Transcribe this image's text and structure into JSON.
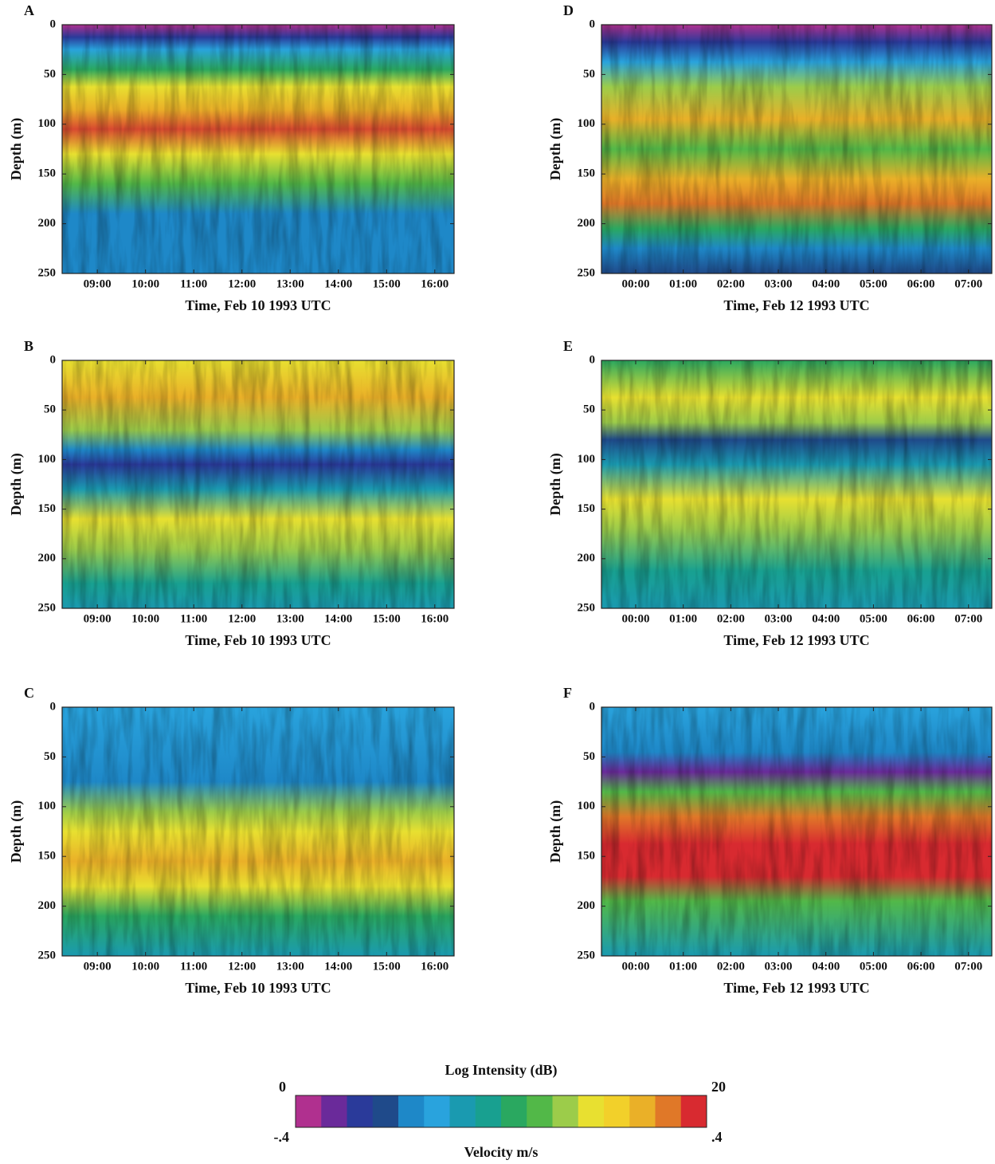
{
  "chart_data": [
    {
      "type": "heatmap",
      "label": "A",
      "xlabel": "Time, Feb 10 1993 UTC",
      "ylabel": "Depth (m)",
      "xlim": [
        8.27,
        16.4
      ],
      "xticks": [
        {
          "value": 9,
          "label": "09:00"
        },
        {
          "value": 10,
          "label": "10:00"
        },
        {
          "value": 11,
          "label": "11:00"
        },
        {
          "value": 12,
          "label": "12:00"
        },
        {
          "value": 13,
          "label": "13:00"
        },
        {
          "value": 14,
          "label": "14:00"
        },
        {
          "value": 15,
          "label": "15:00"
        },
        {
          "value": 16,
          "label": "16:00"
        }
      ],
      "ylim": [
        250,
        0
      ],
      "yticks": [
        0,
        50,
        100,
        150,
        200,
        250
      ]
    },
    {
      "type": "heatmap",
      "label": "B",
      "xlabel": "Time, Feb 10 1993 UTC",
      "ylabel": "Depth (m)",
      "xlim": [
        8.27,
        16.4
      ],
      "xticks": [
        {
          "value": 9,
          "label": "09:00"
        },
        {
          "value": 10,
          "label": "10:00"
        },
        {
          "value": 11,
          "label": "11:00"
        },
        {
          "value": 12,
          "label": "12:00"
        },
        {
          "value": 13,
          "label": "13:00"
        },
        {
          "value": 14,
          "label": "14:00"
        },
        {
          "value": 15,
          "label": "15:00"
        },
        {
          "value": 16,
          "label": "16:00"
        }
      ],
      "ylim": [
        250,
        0
      ],
      "yticks": [
        0,
        50,
        100,
        150,
        200,
        250
      ]
    },
    {
      "type": "heatmap",
      "label": "C",
      "xlabel": "Time, Feb 10 1993 UTC",
      "ylabel": "Depth (m)",
      "xlim": [
        8.27,
        16.4
      ],
      "xticks": [
        {
          "value": 9,
          "label": "09:00"
        },
        {
          "value": 10,
          "label": "10:00"
        },
        {
          "value": 11,
          "label": "11:00"
        },
        {
          "value": 12,
          "label": "12:00"
        },
        {
          "value": 13,
          "label": "13:00"
        },
        {
          "value": 14,
          "label": "14:00"
        },
        {
          "value": 15,
          "label": "15:00"
        },
        {
          "value": 16,
          "label": "16:00"
        }
      ],
      "ylim": [
        250,
        0
      ],
      "yticks": [
        0,
        50,
        100,
        150,
        200,
        250
      ]
    },
    {
      "type": "heatmap",
      "label": "D",
      "xlabel": "Time, Feb 12 1993 UTC",
      "ylabel": "Depth (m)",
      "xlim": [
        -0.72,
        7.49
      ],
      "xticks": [
        {
          "value": 0,
          "label": "00:00"
        },
        {
          "value": 1,
          "label": "01:00"
        },
        {
          "value": 2,
          "label": "02:00"
        },
        {
          "value": 3,
          "label": "03:00"
        },
        {
          "value": 4,
          "label": "04:00"
        },
        {
          "value": 5,
          "label": "05:00"
        },
        {
          "value": 6,
          "label": "06:00"
        },
        {
          "value": 7,
          "label": "07:00"
        }
      ],
      "ylim": [
        250,
        0
      ],
      "yticks": [
        0,
        50,
        100,
        150,
        200,
        250
      ]
    },
    {
      "type": "heatmap",
      "label": "E",
      "xlabel": "Time, Feb 12 1993 UTC",
      "ylabel": "Depth (m)",
      "xlim": [
        -0.72,
        7.49
      ],
      "xticks": [
        {
          "value": 0,
          "label": "00:00"
        },
        {
          "value": 1,
          "label": "01:00"
        },
        {
          "value": 2,
          "label": "02:00"
        },
        {
          "value": 3,
          "label": "03:00"
        },
        {
          "value": 4,
          "label": "04:00"
        },
        {
          "value": 5,
          "label": "05:00"
        },
        {
          "value": 6,
          "label": "06:00"
        },
        {
          "value": 7,
          "label": "07:00"
        }
      ],
      "ylim": [
        250,
        0
      ],
      "yticks": [
        0,
        50,
        100,
        150,
        200,
        250
      ]
    },
    {
      "type": "heatmap",
      "label": "F",
      "xlabel": "Time, Feb 12 1993 UTC",
      "ylabel": "Depth (m)",
      "xlim": [
        -0.72,
        7.49
      ],
      "xticks": [
        {
          "value": 0,
          "label": "00:00"
        },
        {
          "value": 1,
          "label": "01:00"
        },
        {
          "value": 2,
          "label": "02:00"
        },
        {
          "value": 3,
          "label": "03:00"
        },
        {
          "value": 4,
          "label": "04:00"
        },
        {
          "value": 5,
          "label": "05:00"
        },
        {
          "value": 6,
          "label": "06:00"
        },
        {
          "value": 7,
          "label": "07:00"
        }
      ],
      "ylim": [
        250,
        0
      ],
      "yticks": [
        0,
        50,
        100,
        150,
        200,
        250
      ]
    }
  ],
  "colorbar": {
    "title": "Log Intensity (dB)",
    "subtitle": "Velocity m/s",
    "top_range": [
      0,
      20
    ],
    "bottom_range": [
      {
        "value": -0.4,
        "label": "-.4"
      },
      {
        "value": 0.4,
        "label": ".4"
      }
    ],
    "colors": [
      "#b0308f",
      "#6a2a9a",
      "#2a3a9a",
      "#1f4a8a",
      "#1e88c8",
      "#29a3dd",
      "#1a9ab0",
      "#18a090",
      "#2aa860",
      "#52b848",
      "#9ccc4a",
      "#e8e030",
      "#f2d02a",
      "#eab028",
      "#e07828",
      "#d82a30"
    ]
  }
}
